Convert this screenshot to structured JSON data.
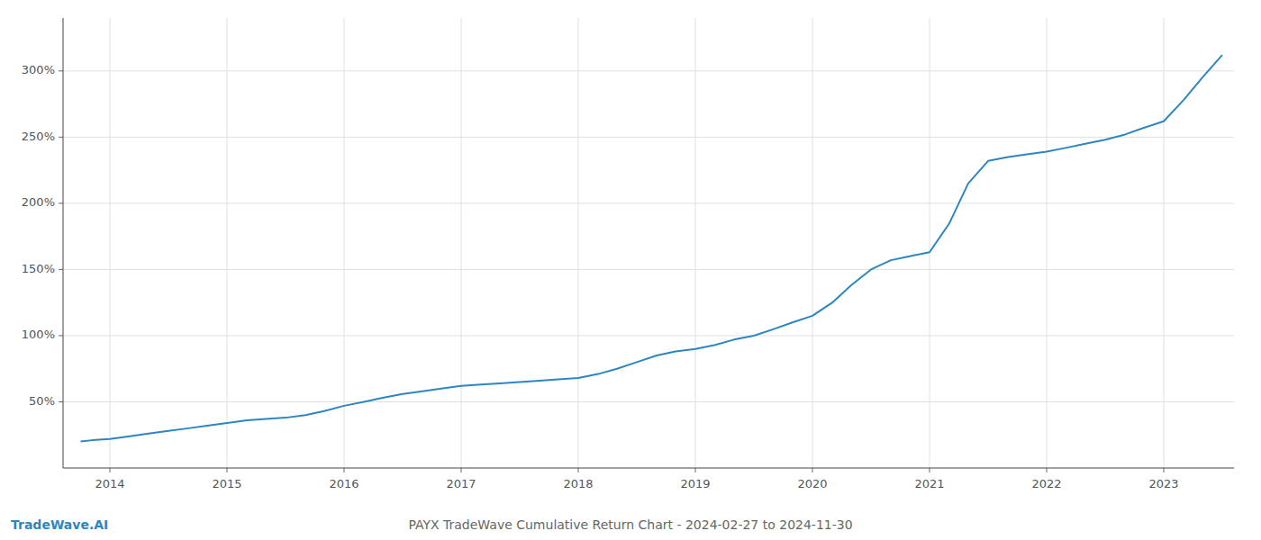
{
  "chart_data": {
    "type": "line",
    "title": "PAYX TradeWave Cumulative Return Chart - 2024-02-27 to 2024-11-30",
    "annotations": [
      "TradeWave.AI"
    ],
    "color": "#2e86c1",
    "grid": true,
    "xlim": [
      2013.6,
      2023.6
    ],
    "ylim": [
      0,
      340
    ],
    "xticks": [
      2014,
      2015,
      2016,
      2017,
      2018,
      2019,
      2020,
      2021,
      2022,
      2023
    ],
    "yticks": [
      {
        "value": 50,
        "label": "50%"
      },
      {
        "value": 100,
        "label": "100%"
      },
      {
        "value": 150,
        "label": "150%"
      },
      {
        "value": 200,
        "label": "200%"
      },
      {
        "value": 250,
        "label": "250%"
      },
      {
        "value": 300,
        "label": "300%"
      }
    ],
    "x": [
      2013.75,
      2013.85,
      2014.0,
      2014.17,
      2014.33,
      2014.5,
      2014.67,
      2014.83,
      2015.0,
      2015.17,
      2015.33,
      2015.5,
      2015.67,
      2015.83,
      2016.0,
      2016.17,
      2016.33,
      2016.5,
      2016.67,
      2016.83,
      2017.0,
      2017.17,
      2017.33,
      2017.5,
      2017.67,
      2017.83,
      2018.0,
      2018.17,
      2018.33,
      2018.5,
      2018.67,
      2018.83,
      2019.0,
      2019.17,
      2019.33,
      2019.5,
      2019.67,
      2019.83,
      2020.0,
      2020.17,
      2020.33,
      2020.5,
      2020.67,
      2020.83,
      2021.0,
      2021.17,
      2021.33,
      2021.5,
      2021.67,
      2021.83,
      2022.0,
      2022.17,
      2022.33,
      2022.5,
      2022.67,
      2022.83,
      2023.0,
      2023.17,
      2023.33,
      2023.5
    ],
    "values": [
      20,
      21,
      22,
      24,
      26,
      28,
      30,
      32,
      34,
      36,
      37,
      38,
      40,
      43,
      47,
      50,
      53,
      56,
      58,
      60,
      62,
      63,
      64,
      65,
      66,
      67,
      68,
      71,
      75,
      80,
      85,
      88,
      90,
      93,
      97,
      100,
      105,
      110,
      115,
      125,
      138,
      150,
      157,
      160,
      163,
      185,
      215,
      232,
      235,
      237,
      239,
      242,
      245,
      248,
      252,
      257,
      262,
      278,
      295,
      312
    ]
  }
}
